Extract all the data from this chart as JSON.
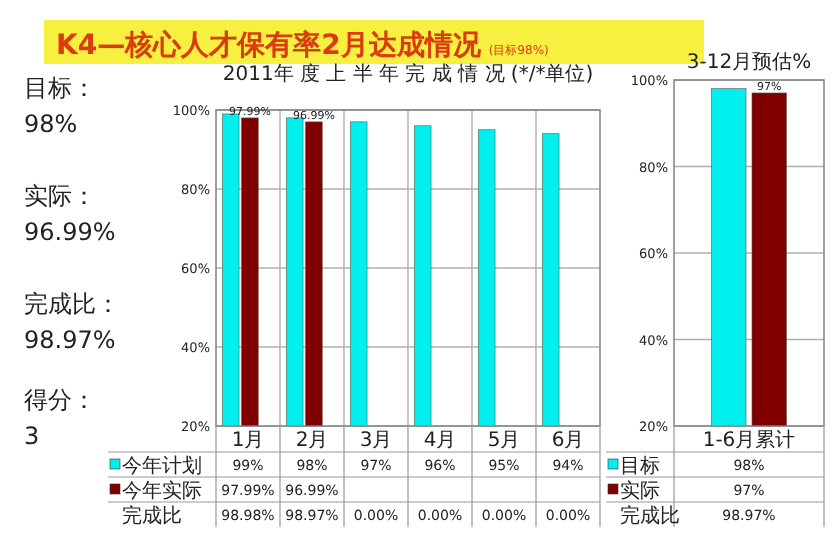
{
  "chart_data": [
    {
      "type": "other",
      "title": "K4—核心人才保有率2月达成情况",
      "subtitle": "(目标98%)",
      "annotations": [
        "目标：",
        "98%",
        "实际：",
        "96.99%",
        "完成比：",
        "98.97%",
        "得分：",
        "3"
      ]
    },
    {
      "type": "bar",
      "title": "2011年 度 上 半 年 完 成 情 况 (*/*单位)",
      "categories": [
        "1月",
        "2月",
        "3月",
        "4月",
        "5月",
        "6月"
      ],
      "series": [
        {
          "name": "今年计划",
          "color": "#00f0f0",
          "values": [
            99,
            98,
            97,
            96,
            95,
            94
          ],
          "value_labels": [
            "99%",
            "98%",
            "97%",
            "96%",
            "95%",
            "94%"
          ]
        },
        {
          "name": "今年实际",
          "color": "#800000",
          "values": [
            97.99,
            96.99,
            null,
            null,
            null,
            null
          ],
          "value_labels": [
            "97.99%",
            "96.99%",
            null,
            null,
            null,
            null
          ]
        }
      ],
      "ylim": [
        20,
        100
      ],
      "yticks": [
        {
          "value": 20,
          "label": "20%"
        },
        {
          "value": 40,
          "label": "40%"
        },
        {
          "value": 60,
          "label": "60%"
        },
        {
          "value": 80,
          "label": "80%"
        },
        {
          "value": 100,
          "label": "100%"
        }
      ],
      "grid": true,
      "legend": "bottom",
      "annotations": [
        "完成比",
        "98.98%",
        "98.97%",
        "0.00%",
        "0.00%",
        "0.00%",
        "0.00%"
      ]
    },
    {
      "type": "bar",
      "title": "3-12月预估%",
      "categories": [
        "1-6月累计"
      ],
      "series": [
        {
          "name": "目标",
          "color": "#00f0f0",
          "values": [
            98
          ],
          "value_labels": [
            "98%"
          ]
        },
        {
          "name": "实际",
          "color": "#800000",
          "values": [
            97
          ],
          "value_labels": [
            "97%"
          ]
        }
      ],
      "ylim": [
        20,
        100
      ],
      "yticks": [
        {
          "value": 20,
          "label": "20%"
        },
        {
          "value": 40,
          "label": "40%"
        },
        {
          "value": 60,
          "label": "60%"
        },
        {
          "value": 80,
          "label": "80%"
        },
        {
          "value": 100,
          "label": "100%"
        }
      ],
      "grid": true,
      "legend": "bottom",
      "annotations": [
        "完成比",
        "98.97%"
      ]
    }
  ]
}
